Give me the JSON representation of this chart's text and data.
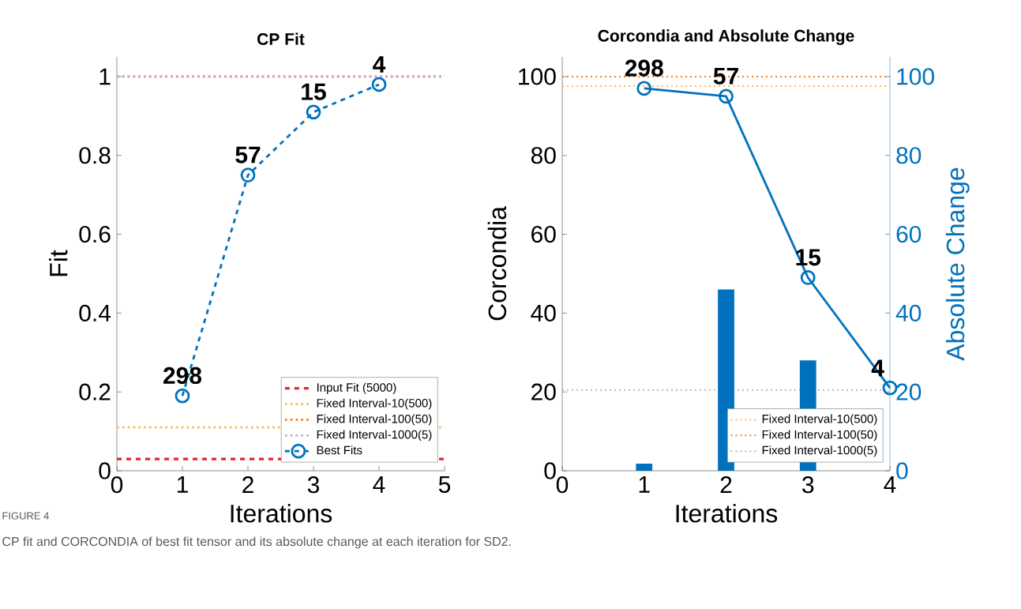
{
  "chart_data": [
    {
      "type": "line",
      "title": "CP Fit",
      "xlabel": "Iterations",
      "ylabel": "Fit",
      "x": [
        1,
        2,
        3,
        4
      ],
      "series": [
        {
          "name": "Best Fits",
          "color": "#0072bd",
          "values": [
            0.19,
            0.75,
            0.91,
            0.98
          ]
        }
      ],
      "marker": "circle",
      "line_style": "dashed",
      "legend": "bottom right",
      "xlim": [
        0,
        5
      ],
      "xticks": [
        0,
        1,
        2,
        3,
        4,
        5
      ],
      "ylim": [
        0,
        1.05
      ],
      "yticks": [
        0,
        0.2,
        0.4,
        0.6,
        0.8,
        1
      ],
      "ref_lines": [
        {
          "axis": "y",
          "value": 0.03,
          "label": "Input Fit (5000)",
          "color": "#e3262b",
          "line_style": "dashed"
        },
        {
          "axis": "y",
          "value": 0.11,
          "label": "Fixed Interval-10(500)",
          "color": "#fbbd5e",
          "line_style": "dotted"
        },
        {
          "axis": "y",
          "value": 1,
          "label": "Fixed Interval-100(50)",
          "color": "#f7801c",
          "line_style": "dotted"
        },
        {
          "axis": "y",
          "value": 1,
          "label": "Fixed Interval-1000(5)",
          "color": "#c9a8d8",
          "line_style": "dotted"
        }
      ],
      "annotations": [
        {
          "text": "298",
          "x": 1,
          "y": 0.19
        },
        {
          "text": "57",
          "x": 2,
          "y": 0.75
        },
        {
          "text": "15",
          "x": 3,
          "y": 0.91
        },
        {
          "text": "4",
          "x": 4,
          "y": 0.98
        },
        "FIGURE 4",
        "CP fit and CORCONDIA of best fit tensor and its absolute change at each iteration for SD2."
      ]
    },
    {
      "type": "bar",
      "title": "Corcondia and Absolute Change",
      "xlabel": "Iterations",
      "ylabel": "Corcondia",
      "y2label": "Absolute Change",
      "series": [
        {
          "type": "bar",
          "x": [
            1,
            2,
            3
          ],
          "values": [
            1.8,
            46,
            28
          ],
          "color": "#0072bd"
        },
        {
          "type": "line",
          "axis": "y2",
          "x": [
            1,
            2,
            3,
            4
          ],
          "values": [
            97,
            95,
            49,
            21
          ],
          "color": "#0072bd"
        }
      ],
      "marker": "circle",
      "line_style": "solid",
      "legend": "bottom right",
      "xlim": [
        0,
        4
      ],
      "xticks": [
        0,
        1,
        2,
        3,
        4
      ],
      "ylim": [
        0,
        105
      ],
      "yticks": [
        0,
        20,
        40,
        60,
        80,
        100
      ],
      "y2lim": [
        0,
        105
      ],
      "y2ticks": [
        0,
        20,
        40,
        60,
        80,
        100
      ],
      "ref_lines": [
        {
          "axis": "y",
          "value": 97.6,
          "label": "Fixed Interval-10(500)",
          "color": "#fbbd5e",
          "line_style": "dotted"
        },
        {
          "axis": "y",
          "value": 100,
          "label": "Fixed Interval-100(50)",
          "color": "#f7801c",
          "line_style": "dotted"
        },
        {
          "axis": "y",
          "value": 20.5,
          "label": "Fixed Interval-1000(5)",
          "color": "#c9a8d8",
          "line_style": "dotted"
        }
      ],
      "annotations": [
        {
          "text": "298",
          "x": 1,
          "y": 97
        },
        {
          "text": "57",
          "x": 2,
          "y": 95
        },
        {
          "text": "15",
          "x": 3,
          "y": 49
        },
        {
          "text": "4",
          "x": 4,
          "y": 21
        }
      ]
    }
  ]
}
